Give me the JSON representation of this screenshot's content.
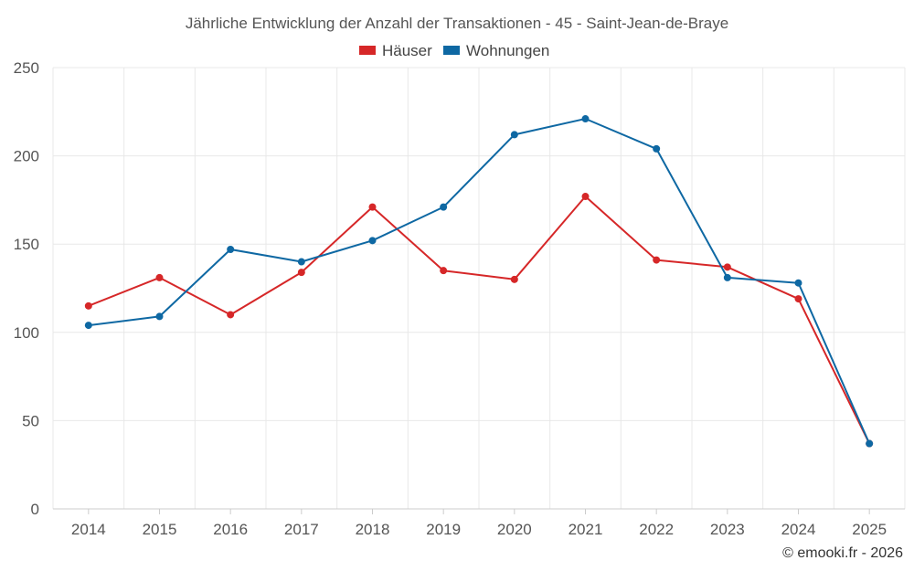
{
  "chart_data": {
    "type": "line",
    "title": "Jährliche Entwicklung der Anzahl der Transaktionen - 45 - Saint-Jean-de-Braye",
    "categories": [
      "2014",
      "2015",
      "2016",
      "2017",
      "2018",
      "2019",
      "2020",
      "2021",
      "2022",
      "2023",
      "2024",
      "2025"
    ],
    "series": [
      {
        "name": "Häuser",
        "color": "#d62728",
        "values": [
          115,
          131,
          110,
          134,
          171,
          135,
          130,
          177,
          141,
          137,
          119,
          37
        ]
      },
      {
        "name": "Wohnungen",
        "color": "#0e68a3",
        "values": [
          104,
          109,
          147,
          140,
          152,
          171,
          212,
          221,
          204,
          131,
          128,
          37
        ]
      }
    ],
    "ylim": [
      0,
      250
    ],
    "yticks": [
      0,
      50,
      100,
      150,
      200,
      250
    ],
    "xlabel": "",
    "ylabel": "",
    "grid": true,
    "legend_position": "top-center"
  },
  "credit": "© emooki.fr - 2026",
  "colors": {
    "grid": "#e8e8e8",
    "axis": "#cccccc"
  }
}
